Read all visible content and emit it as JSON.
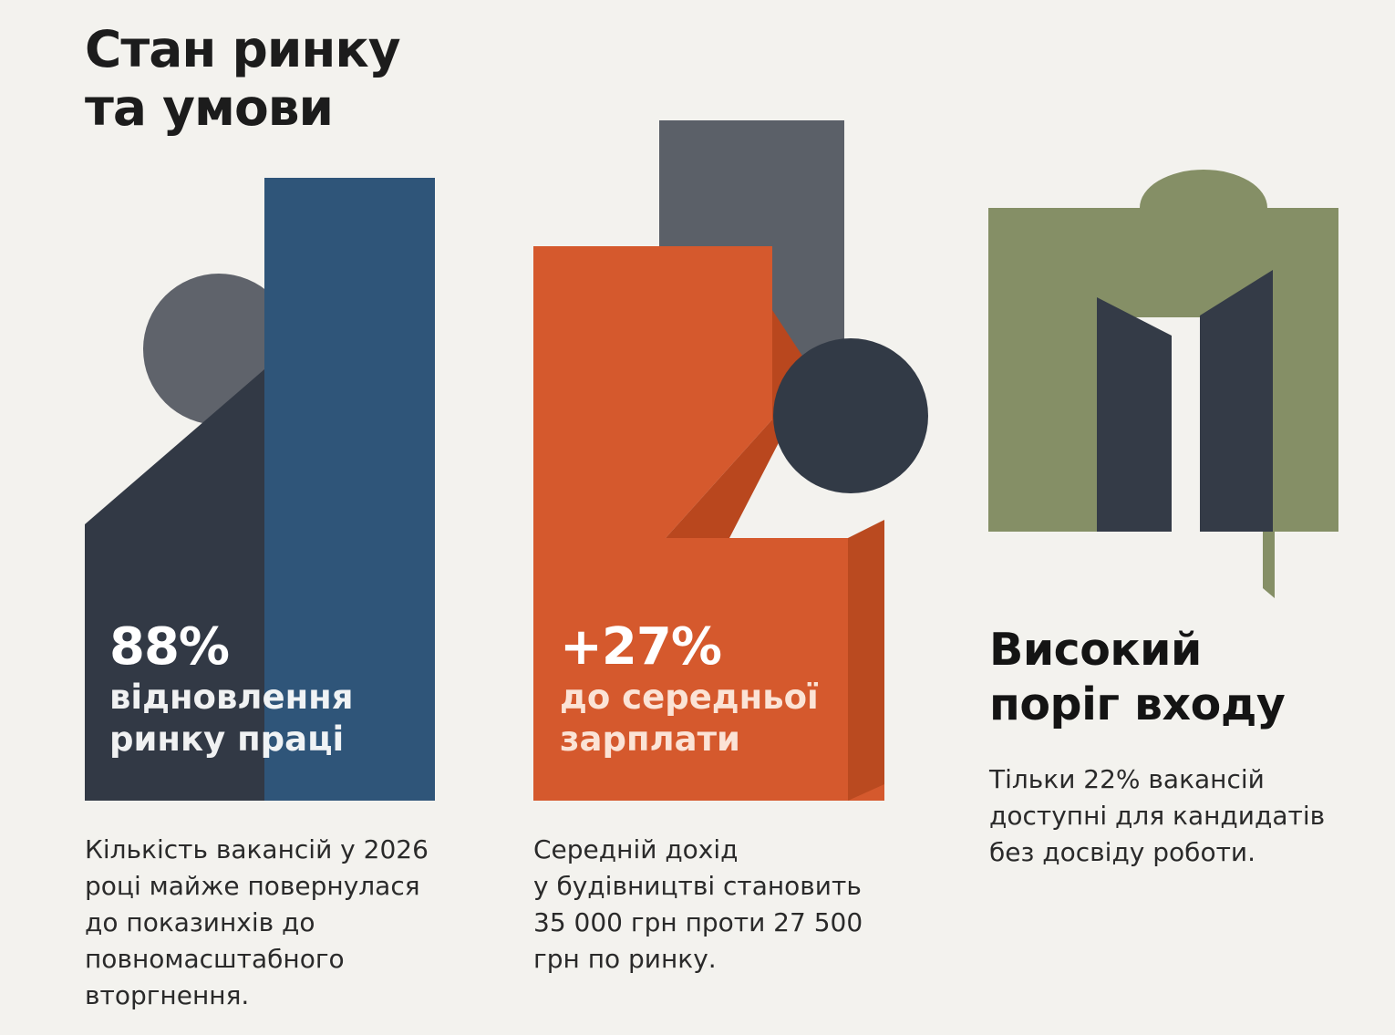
{
  "title": {
    "line1": "Стан ринку",
    "line2": "та умови"
  },
  "colors": {
    "background": "#f3f2ee",
    "blue": "#2f5579",
    "navy": "#333a45",
    "gray": "#5c6068",
    "orange": "#d65a2f",
    "orange_dark": "#b7481f",
    "olive": "#848e65"
  },
  "blocks": [
    {
      "stat": "88%",
      "label_line1": "відновлення",
      "label_line2": "ринку праці",
      "caption_lines": [
        "Кількість вакансій у 2026",
        "році майже повернулася",
        "до показинхів до",
        "повномасштабного",
        "вторгнення."
      ]
    },
    {
      "stat": "+27%",
      "label_line1": "до середньої",
      "label_line2": "зарплати",
      "caption_lines": [
        "Середній дохід",
        "у будівництві становить",
        "35 000 грн проти 27 500",
        "грн по ринку."
      ]
    },
    {
      "heading_line1": "Високий",
      "heading_line2": "поріг входу",
      "caption_lines": [
        "Тільки 22% вакансій",
        "доступні для кандидатів",
        "без досвіду роботи."
      ],
      "icon": "door-arch-icon"
    }
  ]
}
